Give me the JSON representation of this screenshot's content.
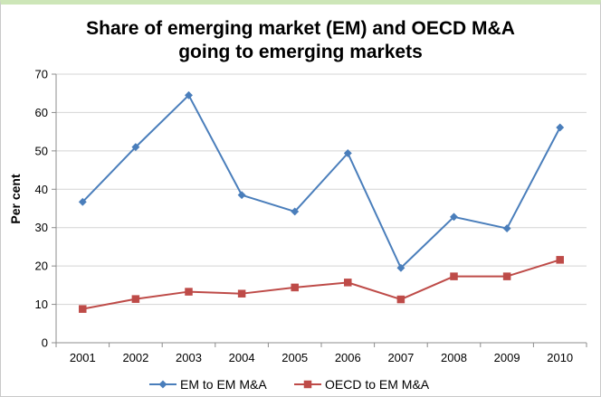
{
  "chart_data": {
    "type": "line",
    "title_line1": "Share of emerging market (EM) and OECD M&A",
    "title_line2": "going to emerging markets",
    "xlabel": "",
    "ylabel": "Per cent",
    "categories": [
      "2001",
      "2002",
      "2003",
      "2004",
      "2005",
      "2006",
      "2007",
      "2008",
      "2009",
      "2010"
    ],
    "ylim": [
      0,
      70
    ],
    "yticks": [
      0,
      10,
      20,
      30,
      40,
      50,
      60,
      70
    ],
    "grid": "horizontal",
    "legend_position": "bottom",
    "series": [
      {
        "name": "EM to EM M&A",
        "color": "#4a7ebb",
        "marker": "diamond",
        "values": [
          36.7,
          51.0,
          64.5,
          38.5,
          34.2,
          49.4,
          19.5,
          32.8,
          29.8,
          56.1
        ]
      },
      {
        "name": "OECD to EM M&A",
        "color": "#be4b48",
        "marker": "square",
        "values": [
          8.8,
          11.4,
          13.3,
          12.8,
          14.4,
          15.7,
          11.3,
          17.3,
          17.3,
          21.6
        ]
      }
    ]
  }
}
